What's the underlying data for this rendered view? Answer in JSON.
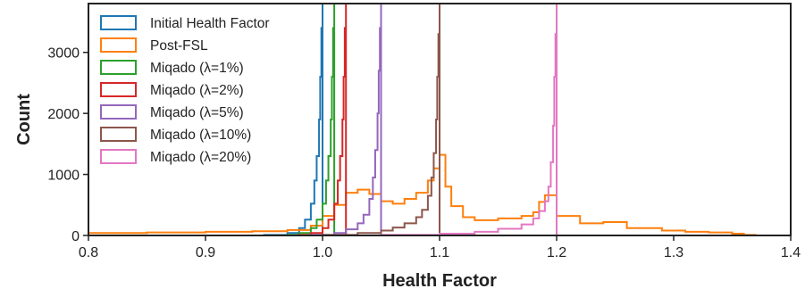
{
  "chart_data": {
    "type": "histogram",
    "title": "",
    "xlabel": "Health Factor",
    "ylabel": "Count",
    "xlim": [
      0.8,
      1.4
    ],
    "ylim": [
      0,
      3800
    ],
    "xticks": [
      "0.8",
      "0.9",
      "1.0",
      "1.1",
      "1.2",
      "1.3",
      "1.4"
    ],
    "yticks": [
      "0",
      "1000",
      "2000",
      "3000"
    ],
    "grid": false,
    "legend_position": "top-left",
    "histtype": "step",
    "series": [
      {
        "name": "Initial Health Factor",
        "color": "#1f77b4",
        "x": [
          0.95,
          0.97,
          0.98,
          0.985,
          0.99,
          0.993,
          0.995,
          0.997,
          0.998,
          0.999,
          1.0,
          1.0
        ],
        "counts": [
          10,
          40,
          120,
          260,
          520,
          900,
          1300,
          1900,
          2600,
          3400,
          3800,
          0
        ]
      },
      {
        "name": "Post-FSL",
        "color": "#ff7f0e",
        "x": [
          0.8,
          0.85,
          0.9,
          0.94,
          0.97,
          0.99,
          1.0,
          1.01,
          1.02,
          1.03,
          1.04,
          1.05,
          1.06,
          1.07,
          1.08,
          1.09,
          1.095,
          1.1,
          1.105,
          1.11,
          1.12,
          1.13,
          1.15,
          1.17,
          1.18,
          1.185,
          1.19,
          1.2,
          1.22,
          1.24,
          1.26,
          1.29,
          1.31,
          1.33,
          1.35,
          1.36,
          1.37
        ],
        "counts": [
          40,
          50,
          60,
          70,
          90,
          160,
          320,
          500,
          700,
          750,
          680,
          560,
          520,
          600,
          700,
          900,
          1100,
          1320,
          800,
          480,
          300,
          250,
          280,
          320,
          380,
          550,
          660,
          320,
          200,
          220,
          120,
          80,
          60,
          50,
          30,
          10,
          0
        ]
      },
      {
        "name": "Miqado (λ=1%)",
        "color": "#2ca02c",
        "x": [
          0.97,
          0.98,
          0.99,
          0.995,
          1.0,
          1.003,
          1.005,
          1.007,
          1.008,
          1.009,
          1.01,
          1.01
        ],
        "counts": [
          10,
          40,
          120,
          260,
          520,
          900,
          1300,
          1900,
          2600,
          3400,
          3800,
          0
        ]
      },
      {
        "name": "Miqado (λ=2%)",
        "color": "#d62728",
        "x": [
          0.98,
          0.99,
          1.0,
          1.005,
          1.01,
          1.013,
          1.015,
          1.017,
          1.018,
          1.019,
          1.02,
          1.02
        ],
        "counts": [
          10,
          40,
          120,
          260,
          520,
          900,
          1300,
          1900,
          2600,
          3400,
          3800,
          0
        ]
      },
      {
        "name": "Miqado (λ=5%)",
        "color": "#9467bd",
        "x": [
          0.99,
          1.01,
          1.02,
          1.03,
          1.035,
          1.04,
          1.043,
          1.045,
          1.047,
          1.048,
          1.049,
          1.05,
          1.05
        ],
        "counts": [
          10,
          40,
          100,
          200,
          340,
          600,
          950,
          1400,
          2000,
          2700,
          3400,
          3800,
          0
        ]
      },
      {
        "name": "Miqado (λ=10%)",
        "color": "#8c564b",
        "x": [
          1.0,
          1.03,
          1.05,
          1.06,
          1.07,
          1.08,
          1.085,
          1.09,
          1.093,
          1.095,
          1.097,
          1.098,
          1.099,
          1.1,
          1.1
        ],
        "counts": [
          10,
          40,
          80,
          130,
          200,
          300,
          420,
          650,
          950,
          1350,
          1900,
          2600,
          3300,
          3800,
          0
        ]
      },
      {
        "name": "Miqado (λ=20%)",
        "color": "#e377c2",
        "x": [
          1.05,
          1.1,
          1.13,
          1.15,
          1.17,
          1.18,
          1.185,
          1.19,
          1.193,
          1.195,
          1.197,
          1.198,
          1.199,
          1.2,
          1.2
        ],
        "counts": [
          10,
          30,
          60,
          110,
          180,
          280,
          400,
          560,
          800,
          1200,
          1800,
          2600,
          3300,
          3800,
          0
        ]
      }
    ]
  }
}
